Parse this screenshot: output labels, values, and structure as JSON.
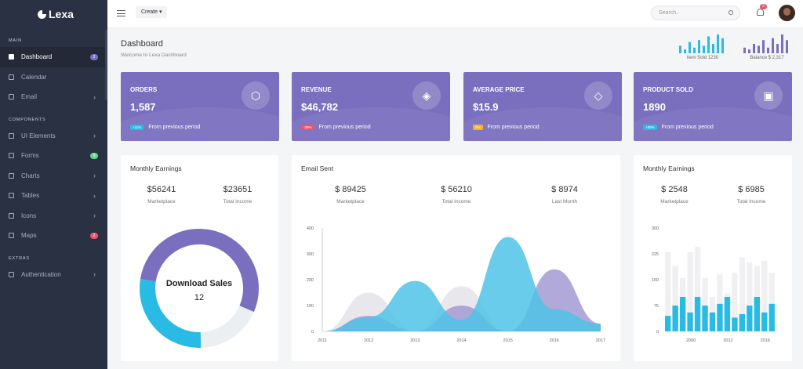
{
  "sidebar": {
    "logo": "Lexa",
    "sections": [
      {
        "title": "MAIN",
        "items": [
          {
            "label": "Dashboard",
            "badge": "2",
            "badge_color": "#7a6fbe",
            "active": true
          },
          {
            "label": "Calendar"
          },
          {
            "label": "Email",
            "chevron": true
          }
        ]
      },
      {
        "title": "COMPONENTS",
        "items": [
          {
            "label": "UI Elements",
            "chevron": true
          },
          {
            "label": "Forms",
            "badge": "9",
            "badge_color": "#58db83"
          },
          {
            "label": "Charts",
            "chevron": true
          },
          {
            "label": "Tables",
            "chevron": true
          },
          {
            "label": "Icons",
            "chevron": true
          },
          {
            "label": "Maps",
            "badge": "2",
            "badge_color": "#ec536c"
          }
        ]
      },
      {
        "title": "EXTRAS",
        "items": [
          {
            "label": "Authentication",
            "chevron": true
          }
        ]
      }
    ]
  },
  "topbar": {
    "create_label": "Create",
    "search_placeholder": "Search..",
    "notification_count": "3"
  },
  "page": {
    "title": "Dashboard",
    "subtitle": "Welcome to Lexa Dashboard"
  },
  "mini_stats": [
    {
      "label": "Item Sold 1230",
      "color": "#29bbe3",
      "values": [
        4,
        2,
        6,
        3,
        7,
        4,
        9,
        5,
        10,
        8
      ]
    },
    {
      "label": "Balance $ 2,317",
      "color": "#7a6fbe",
      "values": [
        3,
        2,
        5,
        4,
        7,
        3,
        8,
        5,
        10,
        7
      ]
    }
  ],
  "stats": [
    {
      "title": "ORDERS",
      "value": "1,587",
      "change": "+11%",
      "change_color": "#29bbe3",
      "change_text": "From previous period",
      "icon": "cube-icon"
    },
    {
      "title": "REVENUE",
      "value": "$46,782",
      "change": "-29%",
      "change_color": "#ec536c",
      "change_text": "From previous period",
      "icon": "layers-icon"
    },
    {
      "title": "AVERAGE PRICE",
      "value": "$15.9",
      "change": "0%",
      "change_color": "#f5b225",
      "change_text": "From previous period",
      "icon": "tag-icon"
    },
    {
      "title": "PRODUCT SOLD",
      "value": "1890",
      "change": "+89%",
      "change_color": "#29bbe3",
      "change_text": "From previous period",
      "icon": "briefcase-icon"
    }
  ],
  "card1": {
    "title": "Monthly Earnings",
    "kpis": [
      {
        "value": "$56241",
        "label": "Marketplace"
      },
      {
        "value": "$23651",
        "label": "Total Income"
      }
    ]
  },
  "card2": {
    "title": "Email Sent",
    "kpis": [
      {
        "value": "$ 89425",
        "label": "Marketplace"
      },
      {
        "value": "$ 56210",
        "label": "Total Income"
      },
      {
        "value": "$ 8974",
        "label": "Last Month"
      }
    ]
  },
  "card3": {
    "title": "Monthly Earnings",
    "kpis": [
      {
        "value": "$ 2548",
        "label": "Marketplace"
      },
      {
        "value": "$ 6985",
        "label": "Total Income"
      }
    ]
  },
  "chart_data": [
    {
      "type": "pie",
      "center_label": "Download Sales",
      "center_value": "12",
      "slices": [
        {
          "value": 54,
          "color": "#7a6fbe"
        },
        {
          "value": 18,
          "color": "#ebeff2"
        },
        {
          "value": 28,
          "color": "#29bbe3"
        }
      ]
    },
    {
      "type": "area",
      "x": [
        "2011",
        "2012",
        "2013",
        "2014",
        "2015",
        "2016",
        "2017"
      ],
      "y_ticks": [
        "0",
        "100",
        "200",
        "300",
        "400"
      ],
      "ylim": [
        0,
        400
      ],
      "series": [
        {
          "color": "#e6e6ea",
          "values": [
            0,
            150,
            0,
            175,
            0,
            90,
            0
          ]
        },
        {
          "color": "#a59ad5",
          "values": [
            0,
            60,
            0,
            100,
            0,
            240,
            30
          ]
        },
        {
          "color": "#4fc3e6",
          "values": [
            0,
            55,
            195,
            45,
            365,
            85,
            30
          ]
        }
      ]
    },
    {
      "type": "bar",
      "x_ticks": [
        "2000",
        "2012",
        "2016"
      ],
      "y_ticks": [
        "0",
        "75",
        "150",
        "225",
        "300"
      ],
      "ylim": [
        0,
        300
      ],
      "series": [
        {
          "color": "#29bbe3",
          "values": [
            45,
            75,
            100,
            55,
            100,
            75,
            55,
            80,
            100,
            40,
            50,
            75,
            100,
            55,
            80
          ]
        },
        {
          "color": "#f0f0f2",
          "values": [
            230,
            190,
            155,
            230,
            245,
            155,
            100,
            165,
            110,
            170,
            215,
            200,
            190,
            205,
            170
          ]
        }
      ]
    }
  ]
}
